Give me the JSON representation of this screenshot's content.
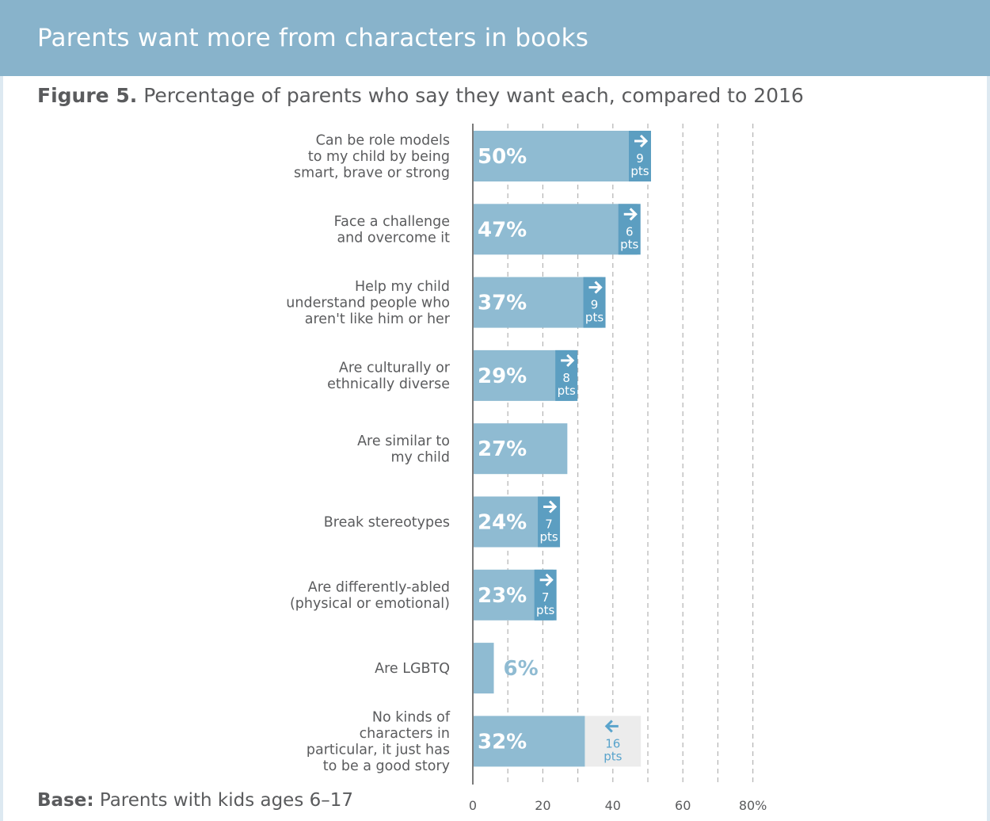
{
  "header": {
    "title": "Parents want more from characters in books"
  },
  "subtitle": {
    "figure": "Figure 5.",
    "text": "Percentage of parents who say they want each, compared to 2016"
  },
  "base": {
    "label": "Base:",
    "text": "Parents with kids ages 6–17"
  },
  "colors": {
    "header": "#88b3cb",
    "bar": "#8fbbd2",
    "change_up": "#5c9ec1",
    "change_down": "#ececec",
    "arrow_down": "#5aa4cc",
    "text": "#5a5b5d"
  },
  "chart_data": {
    "type": "bar",
    "orientation": "horizontal",
    "title": "Percentage of parents who say they want each, compared to 2016",
    "xlabel": "",
    "ylabel": "",
    "xlim": [
      0,
      80
    ],
    "xticks": [
      0,
      20,
      40,
      60,
      80
    ],
    "xtick_labels": [
      "0",
      "20",
      "40",
      "60",
      "80%"
    ],
    "grid": true,
    "categories": [
      [
        "Can be role models",
        "to my child by being",
        "smart, brave or strong"
      ],
      [
        "Face a challenge",
        "and overcome it"
      ],
      [
        "Help my child",
        "understand people who",
        "aren't like him or her"
      ],
      [
        "Are culturally or",
        "ethnically diverse"
      ],
      [
        "Are similar to",
        "my child"
      ],
      [
        "Break stereotypes"
      ],
      [
        "Are differently-abled",
        "(physical or emotional)"
      ],
      [
        "Are LGBTQ"
      ],
      [
        "No kinds of",
        "characters in",
        "particular, it just has",
        "to be a good story"
      ]
    ],
    "values": [
      50,
      47,
      37,
      29,
      27,
      24,
      23,
      6,
      32
    ],
    "value_labels": [
      "50%",
      "47%",
      "37%",
      "29%",
      "27%",
      "24%",
      "23%",
      "6%",
      "32%"
    ],
    "change_pts": [
      9,
      6,
      9,
      8,
      null,
      7,
      7,
      null,
      -16
    ],
    "change_labels": [
      [
        "9",
        "pts"
      ],
      [
        "6",
        "pts"
      ],
      [
        "9",
        "pts"
      ],
      [
        "8",
        "pts"
      ],
      null,
      [
        "7",
        "pts"
      ],
      [
        "7",
        "pts"
      ],
      null,
      [
        "16",
        "pts"
      ]
    ]
  }
}
